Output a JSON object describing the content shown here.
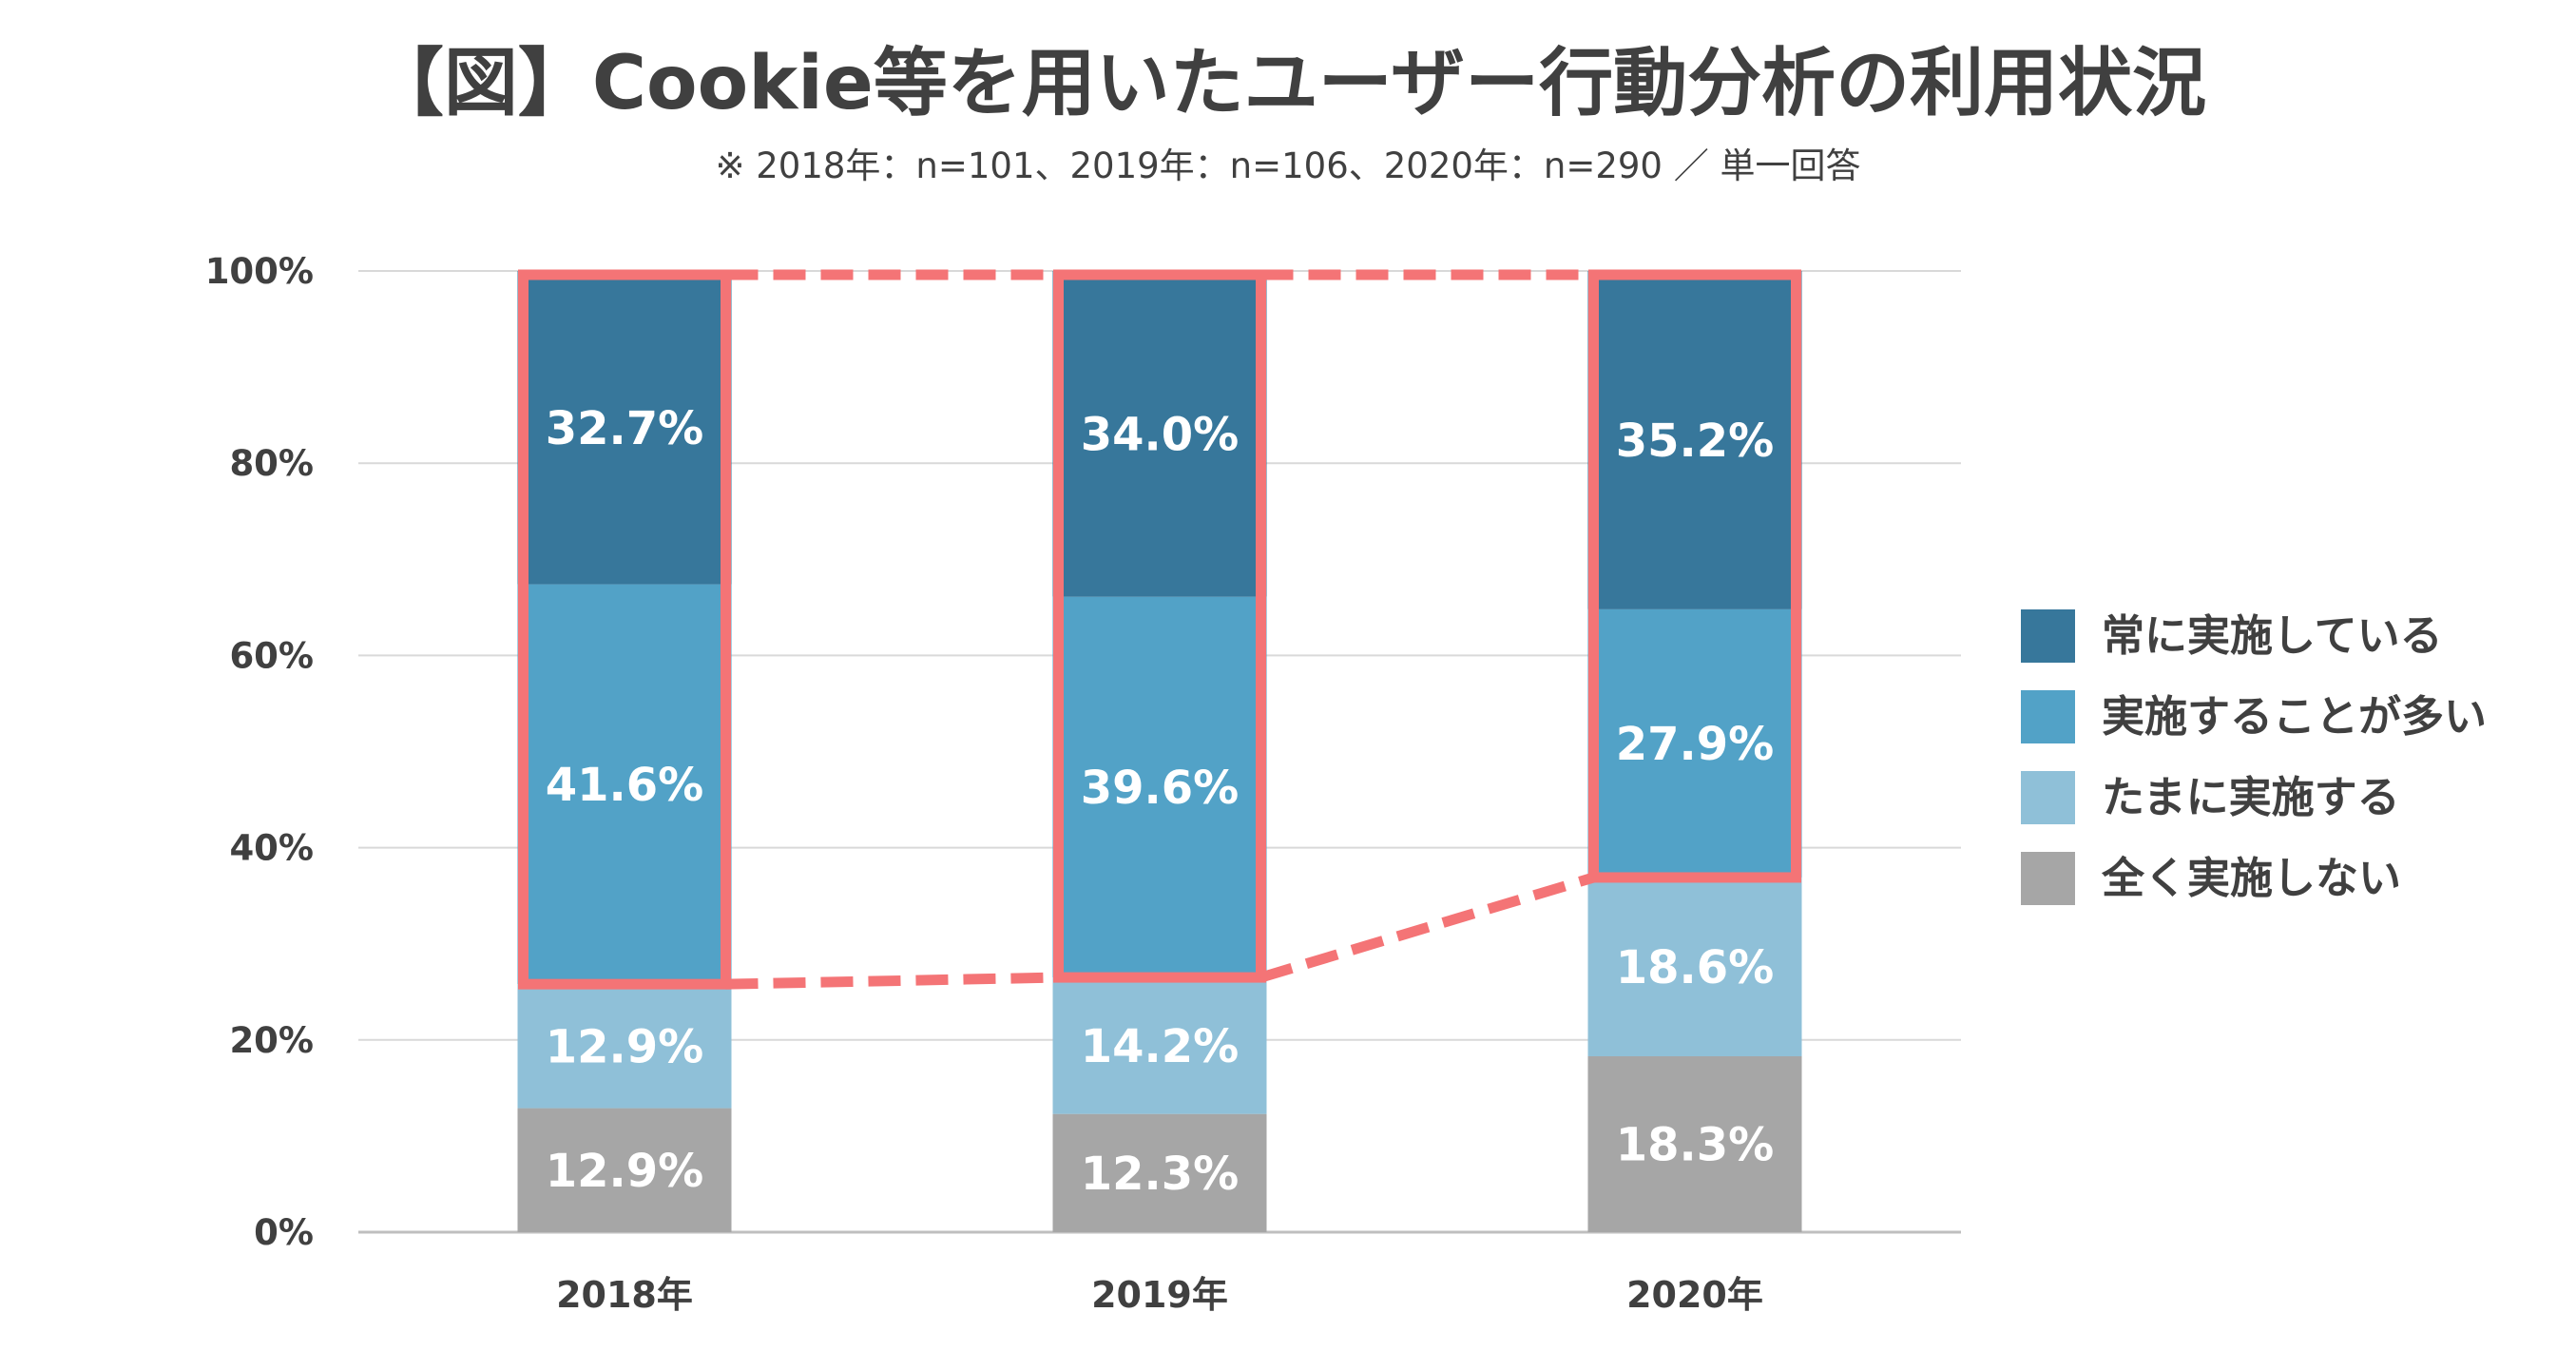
{
  "chart_data": {
    "type": "bar",
    "stacked": true,
    "title": "【図】Cookie等を用いたユーザー行動分析の利用状況",
    "subtitle": "※ 2018年：n=101、2019年：n=106、2020年：n=290 ／ 単一回答",
    "categories": [
      "2018年",
      "2019年",
      "2020年"
    ],
    "ylim": [
      0,
      100
    ],
    "yticks": [
      "0%",
      "20%",
      "40%",
      "60%",
      "80%",
      "100%"
    ],
    "grid": true,
    "legend_position": "right",
    "series": [
      {
        "name": "全く実施しない",
        "color": "#a6a6a6",
        "values": [
          12.9,
          12.3,
          18.3
        ],
        "labels": [
          "12.9%",
          "12.3%",
          "18.3%"
        ]
      },
      {
        "name": "たまに実施する",
        "color": "#8fc0d8",
        "values": [
          12.9,
          14.2,
          18.6
        ],
        "labels": [
          "12.9%",
          "14.2%",
          "18.6%"
        ]
      },
      {
        "name": "実施することが多い",
        "color": "#52a2c7",
        "values": [
          41.6,
          39.6,
          27.9
        ],
        "labels": [
          "41.6%",
          "39.6%",
          "27.9%"
        ]
      },
      {
        "name": "常に実施している",
        "color": "#37779b",
        "values": [
          32.7,
          34.0,
          35.2
        ],
        "labels": [
          "32.7%",
          "34.0%",
          "35.2%"
        ]
      }
    ],
    "legend_order": [
      3,
      2,
      1,
      0
    ],
    "highlight": {
      "series": [
        2,
        3
      ],
      "color": "#f47476",
      "style": "outline boxes joined by dashed lines"
    }
  }
}
